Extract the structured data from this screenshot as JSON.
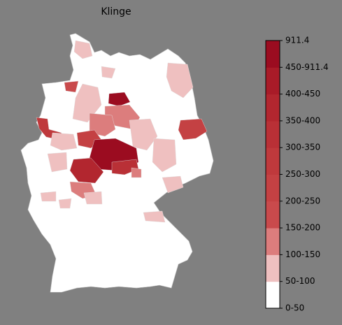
{
  "title": "Klinge",
  "legend": {
    "labels": [
      "0-50",
      "50-100",
      "100-150",
      "150-200",
      "200-250",
      "250-300",
      "300-350",
      "350-400",
      "400-450",
      "450-911.4",
      "911.4"
    ],
    "colors": [
      "#ffffff",
      "#efc0c0",
      "#dc7d7d",
      "#c94a4c",
      "#c44143",
      "#bf393c",
      "#b93036",
      "#b2262f",
      "#a91b28",
      "#9b0c20"
    ]
  }
}
